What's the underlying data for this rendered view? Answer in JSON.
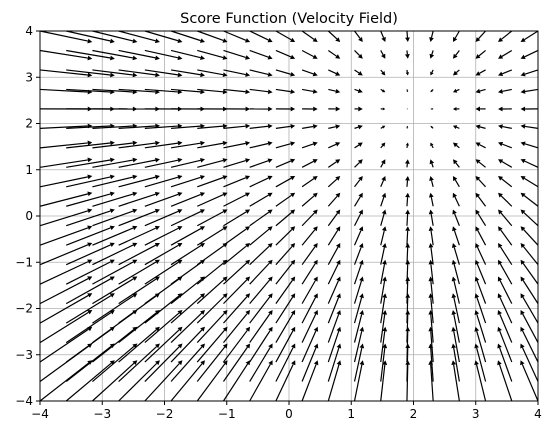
{
  "chart_data": {
    "type": "quiver",
    "title": "Score Function (Velocity Field)",
    "xlabel": "",
    "ylabel": "",
    "xlim": [
      -4,
      4
    ],
    "ylim": [
      -4,
      4
    ],
    "xticks": [
      -4,
      -3,
      -2,
      -1,
      0,
      1,
      2,
      3,
      4
    ],
    "yticks": [
      -4,
      -3,
      -2,
      -1,
      0,
      1,
      2,
      3,
      4
    ],
    "grid": true,
    "grid_points": {
      "x_from": -4,
      "x_to": 4,
      "y_from": -4,
      "y_to": 4,
      "count": 20
    },
    "field": {
      "description": "score of a Gaussian centred near (2, 2.3)",
      "center": [
        2.0,
        2.3
      ],
      "gain": 0.14,
      "components": "u = gain*(center_x - x), v = gain*(center_y - y)"
    },
    "arrow_color": "#000000"
  }
}
